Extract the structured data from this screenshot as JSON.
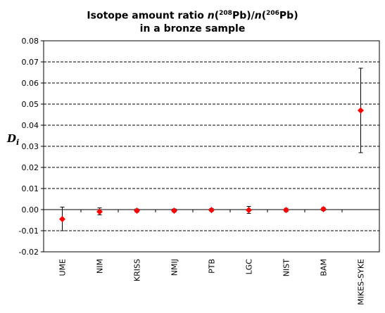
{
  "chart_data": {
    "type": "scatter",
    "title_line1_prefix": "Isotope amount ratio ",
    "title_n1": "n",
    "title_paren1_open": "(",
    "title_sup1": "208",
    "title_el1": "Pb)/",
    "title_n2": "n",
    "title_paren2_open": "(",
    "title_sup2": "206",
    "title_el2": "Pb)",
    "title_line2": "in a bronze sample",
    "ylabel_main": "D",
    "ylabel_sub": "i",
    "ylim": [
      -0.02,
      0.08
    ],
    "yticks": [
      "0.08",
      "0.07",
      "0.06",
      "0.05",
      "0.04",
      "0.03",
      "0.02",
      "0.01",
      "0.00",
      "-0.01",
      "-0.02"
    ],
    "ytick_values": [
      0.08,
      0.07,
      0.06,
      0.05,
      0.04,
      0.03,
      0.02,
      0.01,
      0.0,
      -0.01,
      -0.02
    ],
    "grid": "horizontal dashed",
    "categories": [
      "UME",
      "NIM",
      "KRISS",
      "NMIJ",
      "PTB",
      "LGC",
      "NIST",
      "BAM",
      "MIKES-SYKE"
    ],
    "values": [
      -0.0045,
      -0.001,
      -0.0005,
      -0.0005,
      -0.0002,
      -0.0002,
      -0.0002,
      0.0002,
      0.047
    ],
    "err_low": [
      -0.01,
      -0.0025,
      -0.0012,
      -0.0012,
      -0.0008,
      -0.0018,
      -0.001,
      -0.0005,
      0.027
    ],
    "err_high": [
      0.0012,
      0.0008,
      0.0003,
      0.0003,
      0.0005,
      0.0015,
      0.0006,
      0.001,
      0.067
    ],
    "marker_color": "#ff0000"
  }
}
